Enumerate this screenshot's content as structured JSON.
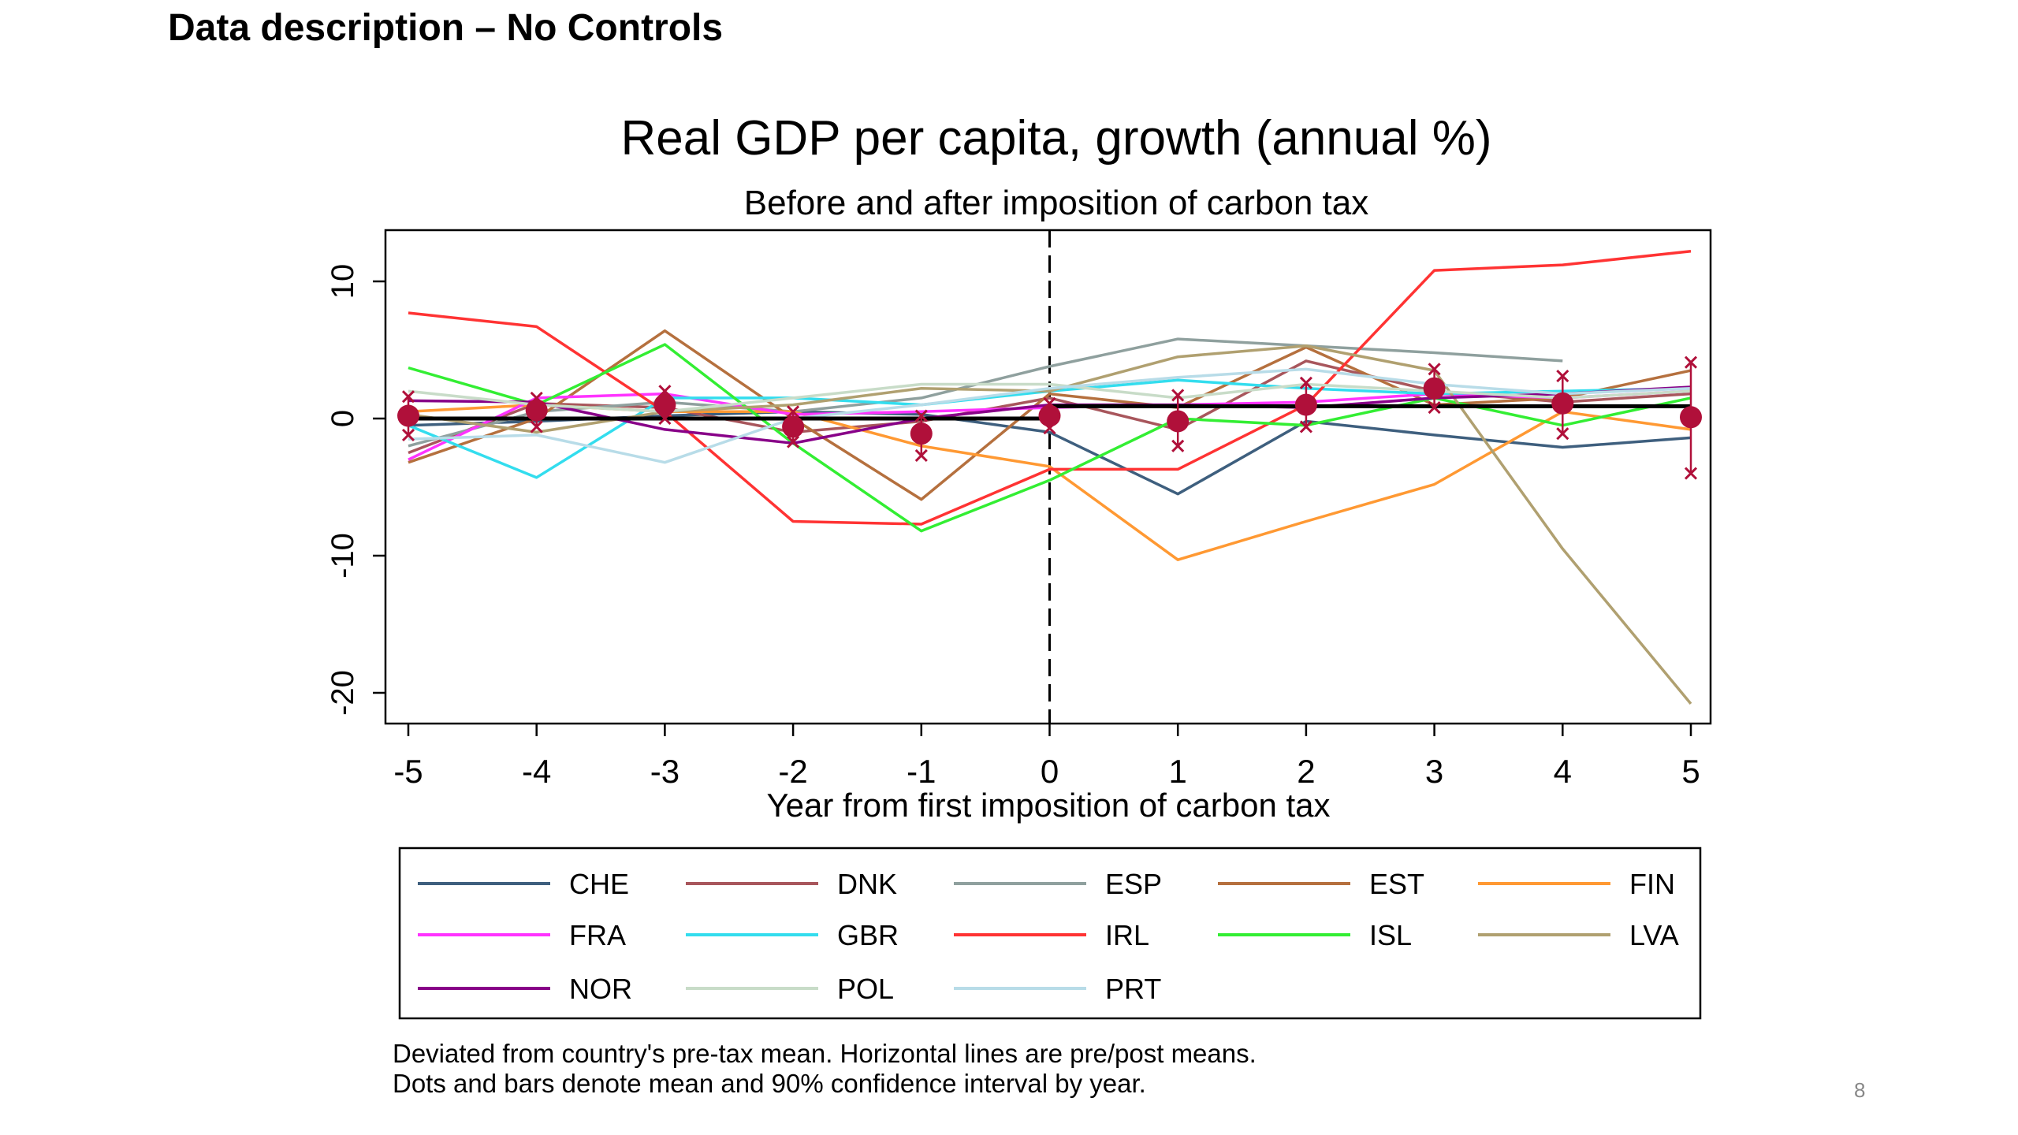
{
  "slide": {
    "title": "Data description – No Controls",
    "page_number": "8"
  },
  "chart_data": {
    "type": "line",
    "title": "Real GDP per capita, growth (annual %)",
    "subtitle": "Before and after imposition of carbon tax",
    "xlabel": "Year from first imposition of carbon tax",
    "ylabel": "",
    "xlim": [
      -5,
      5
    ],
    "ylim": [
      -22,
      14
    ],
    "x": [
      -5,
      -4,
      -3,
      -2,
      -1,
      0,
      1,
      2,
      3,
      4,
      5
    ],
    "x_ticks": [
      "-5",
      "-4",
      "-3",
      "-2",
      "-1",
      "0",
      "1",
      "2",
      "3",
      "4",
      "5"
    ],
    "y_ticks": [
      10,
      0,
      -10,
      -20
    ],
    "y_tick_labels": [
      "10",
      "0",
      "-10",
      "-20"
    ],
    "grid": false,
    "vertical_reference_line_x": 0,
    "series": [
      {
        "name": "CHE",
        "color": "#3e5f7e",
        "values": [
          -0.5,
          -0.2,
          0.2,
          0.5,
          0.3,
          -1.0,
          -5.5,
          -0.2,
          -1.2,
          -2.1,
          -1.4
        ]
      },
      {
        "name": "DNK",
        "color": "#a8565c",
        "values": [
          -2.5,
          1.1,
          0.8,
          -1.0,
          -0.2,
          1.5,
          -0.8,
          4.2,
          2.0,
          1.2,
          1.8
        ]
      },
      {
        "name": "ESP",
        "color": "#8fa09e",
        "values": [
          -2.0,
          0.5,
          1.2,
          0.5,
          1.5,
          3.8,
          5.8,
          5.3,
          4.8,
          4.2,
          null
        ]
      },
      {
        "name": "EST",
        "color": "#b5703e",
        "values": [
          -3.2,
          0.0,
          6.4,
          0.0,
          -5.9,
          1.8,
          0.8,
          5.2,
          1.0,
          1.5,
          3.5
        ]
      },
      {
        "name": "FIN",
        "color": "#ff9933",
        "values": [
          0.5,
          1.0,
          0.5,
          0.5,
          -2.0,
          -3.5,
          -10.3,
          -7.5,
          -4.8,
          0.5,
          -0.8
        ]
      },
      {
        "name": "FRA",
        "color": "#ff33ff",
        "values": [
          -3.0,
          1.5,
          1.8,
          0.3,
          0.5,
          0.8,
          1.0,
          1.2,
          1.8,
          1.5,
          2.0
        ]
      },
      {
        "name": "GBR",
        "color": "#33ddee",
        "values": [
          -0.5,
          -4.3,
          1.5,
          1.5,
          1.0,
          2.0,
          2.8,
          2.2,
          1.8,
          2.0,
          2.2
        ]
      },
      {
        "name": "IRL",
        "color": "#ff3333",
        "values": [
          7.7,
          6.7,
          0.5,
          -7.5,
          -7.7,
          -3.7,
          -3.7,
          1.0,
          10.8,
          11.2,
          12.2
        ]
      },
      {
        "name": "ISL",
        "color": "#33ee33",
        "values": [
          3.7,
          1.0,
          5.4,
          -1.8,
          -8.2,
          -4.5,
          0.0,
          -0.5,
          1.5,
          -0.5,
          1.5
        ]
      },
      {
        "name": "LVA",
        "color": "#b0a070",
        "values": [
          0.3,
          -1.0,
          0.5,
          1.0,
          2.2,
          2.0,
          4.5,
          5.3,
          3.5,
          -9.5,
          -20.8
        ]
      },
      {
        "name": "NOR",
        "color": "#880088",
        "values": [
          1.3,
          1.2,
          -0.8,
          -1.8,
          0.0,
          1.0,
          1.0,
          0.8,
          1.5,
          1.8,
          2.3
        ]
      },
      {
        "name": "POL",
        "color": "#c8dcc8",
        "values": [
          2.0,
          1.0,
          0.5,
          1.5,
          2.5,
          2.5,
          1.5,
          2.5,
          2.0,
          1.5,
          2.0
        ]
      },
      {
        "name": "PRT",
        "color": "#b8dce8",
        "values": [
          -1.5,
          -1.2,
          -3.2,
          0.0,
          1.0,
          2.2,
          3.0,
          3.6,
          2.5,
          1.8,
          2.2
        ]
      }
    ],
    "means": {
      "color": "#b0103a",
      "x": [
        -5,
        -4,
        -3,
        -2,
        -1,
        0,
        1,
        2,
        3,
        4,
        5
      ],
      "values": [
        0.2,
        0.6,
        1.0,
        -0.6,
        -1.1,
        0.2,
        -0.2,
        1.0,
        2.2,
        1.1,
        0.1
      ],
      "ci_low": [
        -1.2,
        -0.6,
        0.0,
        -1.7,
        -2.7,
        -0.7,
        -2.0,
        -0.6,
        0.8,
        -1.1,
        -4.0
      ],
      "ci_high": [
        1.6,
        1.5,
        2.0,
        0.5,
        0.2,
        1.1,
        1.7,
        2.6,
        3.6,
        3.1,
        4.1
      ]
    },
    "pre_post_means": {
      "pre": 0.0,
      "post": 0.9
    },
    "legend_position": "bottom",
    "legend_columns": 5,
    "note": [
      "Deviated from country's pre-tax mean. Horizontal lines are pre/post means.",
      "Dots and bars denote mean and 90% confidence interval by year."
    ]
  }
}
